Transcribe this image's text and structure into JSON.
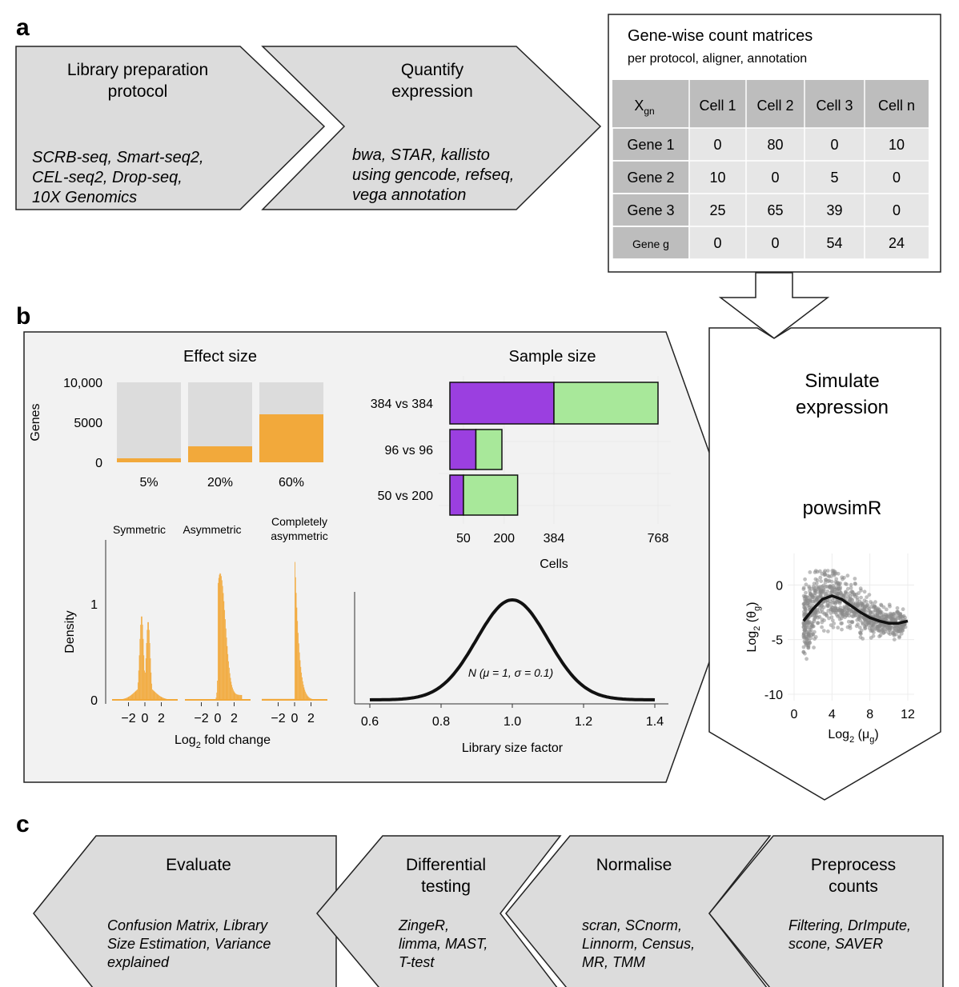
{
  "panels": {
    "a": {
      "letter": "a",
      "step1": {
        "title_lines": [
          "Library preparation",
          "protocol"
        ],
        "detail_lines": [
          "SCRB-seq, Smart-seq2,",
          "CEL-seq2, Drop-seq,",
          "10X Genomics"
        ]
      },
      "step2": {
        "title_lines": [
          "Quantify",
          "expression"
        ],
        "detail_lines": [
          "bwa, STAR, kallisto",
          "using gencode, refseq,",
          "vega annotation"
        ]
      },
      "matrix": {
        "title": "Gene-wise count matrices",
        "subtitle": "per protocol, aligner, annotation",
        "corner_main": "X",
        "corner_sub": "gn",
        "columns": [
          "Cell 1",
          "Cell 2",
          "Cell 3",
          "Cell n"
        ],
        "rows": [
          {
            "gene": "Gene 1",
            "values": [
              "0",
              "80",
              "0",
              "10"
            ]
          },
          {
            "gene": "Gene 2",
            "values": [
              "10",
              "0",
              "5",
              "0"
            ]
          },
          {
            "gene": "Gene 3",
            "values": [
              "25",
              "65",
              "39",
              "0"
            ]
          },
          {
            "gene": "Gene g",
            "values": [
              "0",
              "0",
              "54",
              "24"
            ]
          }
        ]
      }
    },
    "b": {
      "letter": "b",
      "simulate_lines": [
        "Simulate",
        "expression"
      ],
      "tool": "powsimR"
    },
    "c": {
      "letter": "c",
      "steps": [
        {
          "title_lines": [
            "Evaluate"
          ],
          "detail_lines": [
            "Confusion Matrix, Library",
            "Size Estimation, Variance",
            "explained"
          ]
        },
        {
          "title_lines": [
            "Differential",
            "testing"
          ],
          "detail_lines": [
            "ZingeR,",
            "limma, MAST,",
            "T-test"
          ]
        },
        {
          "title_lines": [
            "Normalise"
          ],
          "detail_lines": [
            "scran, SCnorm,",
            "Linnorm, Census,",
            "MR, TMM"
          ]
        },
        {
          "title_lines": [
            "Preprocess",
            "counts"
          ],
          "detail_lines": [
            "Filtering, DrImpute,",
            "scone, SAVER"
          ]
        }
      ]
    }
  },
  "colors": {
    "arrow_fill": "#dcdcdc",
    "header_cell": "#bdbdbd",
    "body_cell": "#e6e6e6",
    "orange": "#f2a93b",
    "purple": "#9b3fe0",
    "green": "#a8e89a",
    "panel_bg": "#f2f2f2",
    "scatter": "#8a8a8a"
  },
  "chart_data": [
    {
      "type": "bar",
      "title": "Effect size",
      "ylabel": "Genes",
      "categories": [
        "5%",
        "20%",
        "60%"
      ],
      "ylim": [
        0,
        10000
      ],
      "yticks": [
        "10,000",
        "5000",
        "0"
      ],
      "series": [
        {
          "values": [
            10000,
            10000,
            10000
          ],
          "color": "#dcdcdc"
        },
        {
          "values": [
            500,
            2000,
            6000
          ],
          "color": "#f2a93b"
        }
      ],
      "grid": false
    },
    {
      "type": "bar",
      "orientation": "horizontal",
      "stacked": true,
      "title": "Sample size",
      "xlabel": "Cells",
      "categories": [
        "384 vs 384",
        "96 vs 96",
        "50 vs 200"
      ],
      "xlim": [
        0,
        768
      ],
      "xticks": [
        50,
        200,
        384,
        768
      ],
      "series": [
        {
          "values": [
            384,
            96,
            50
          ],
          "color": "#9b3fe0"
        },
        {
          "values": [
            384,
            96,
            200
          ],
          "color": "#a8e89a"
        }
      ],
      "grid": true
    },
    {
      "type": "area",
      "ylabel": "Density",
      "xlabel_main": "Log",
      "xlabel_sub": "2",
      "xlabel_rest": " fold change",
      "facets": [
        "Symmetric",
        "Asymmetric",
        "Completely asymmetric"
      ],
      "facet_label_lines": [
        [
          "Symmetric"
        ],
        [
          "Asymmetric"
        ],
        [
          "Completely",
          "asymmetric"
        ]
      ],
      "xticks": [
        "−2",
        "0",
        "2"
      ],
      "yticks": [
        "1",
        "0"
      ],
      "peak_density": [
        0.88,
        1.27,
        1.5
      ],
      "color": "#f2a93b"
    },
    {
      "type": "line",
      "xlabel": "Library size factor",
      "annotation": "N (μ = 1, σ = 0.1)",
      "xticks": [
        "0.6",
        "0.8",
        "1.0",
        "1.2",
        "1.4"
      ],
      "xlim": [
        0.6,
        1.4
      ],
      "mean": 1,
      "sd": 0.1
    },
    {
      "type": "scatter",
      "xlabel_main": "Log",
      "xlabel_sub": "2",
      "xlabel_rest": " (μ",
      "xlabel_sub2": "g",
      "ylabel_main": "Log",
      "ylabel_sub": "2",
      "ylabel_rest": " (θ",
      "ylabel_sub2": "g",
      "xlim": [
        0,
        12
      ],
      "ylim": [
        -10,
        2
      ],
      "xticks": [
        0,
        4,
        8,
        12
      ],
      "yticks": [
        0,
        -5,
        -10
      ],
      "trend": [
        [
          1,
          -3.3
        ],
        [
          2,
          -2.2
        ],
        [
          3,
          -1.3
        ],
        [
          4,
          -1.0
        ],
        [
          5,
          -1.3
        ],
        [
          6,
          -1.9
        ],
        [
          7,
          -2.5
        ],
        [
          8,
          -3.0
        ],
        [
          9,
          -3.3
        ],
        [
          10,
          -3.5
        ],
        [
          11,
          -3.5
        ],
        [
          12,
          -3.3
        ]
      ]
    }
  ]
}
